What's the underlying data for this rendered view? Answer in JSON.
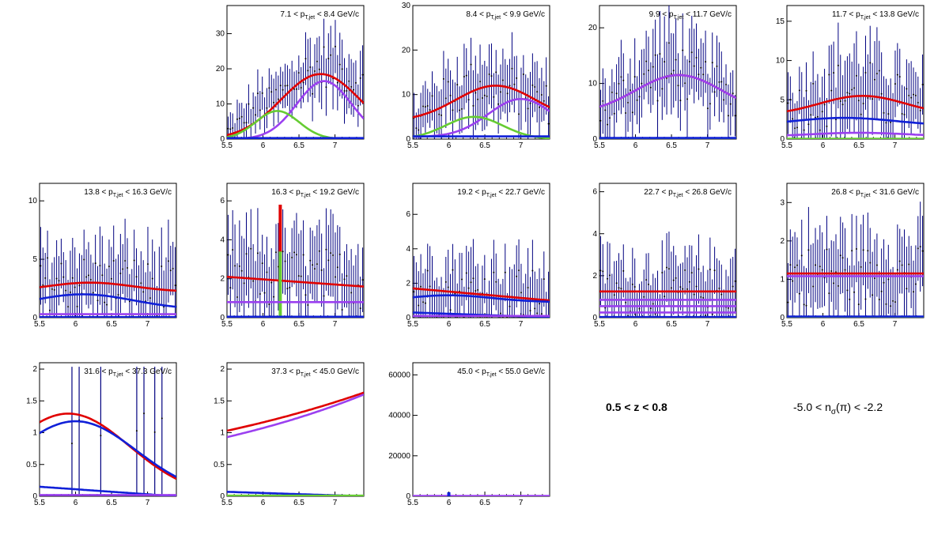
{
  "chart_data": [
    {
      "type": "scatter",
      "panel": "7.1-8.4",
      "label": {
        "lo": "7.1",
        "hi": "8.4",
        "unit": "GeV/c",
        "var": "p",
        "sub": "T,jet"
      },
      "xlim": [
        5.5,
        7.4
      ],
      "ylim": [
        0,
        38
      ],
      "yticks": [
        0,
        10,
        20,
        30
      ],
      "xticks": [
        5.5,
        6,
        6.5,
        7
      ],
      "data_level": [
        2,
        4,
        7,
        9,
        10,
        11,
        13,
        15,
        17,
        19,
        20,
        21,
        20,
        19,
        17,
        15
      ],
      "errors": [
        4,
        5,
        5,
        6,
        6,
        6,
        7,
        7,
        7,
        8,
        8,
        8,
        8,
        8,
        7,
        7
      ],
      "curves": [
        {
          "color": "#e00000",
          "type": "gauss",
          "amp": 18.5,
          "mu": 6.8,
          "sigma": 0.55,
          "base": 0
        },
        {
          "color": "#9b40f0",
          "type": "gauss",
          "amp": 16.5,
          "mu": 6.85,
          "sigma": 0.38,
          "base": 0
        },
        {
          "color": "#66cc33",
          "type": "gauss",
          "amp": 8,
          "mu": 6.2,
          "sigma": 0.3,
          "base": 0
        },
        {
          "color": "#1020d8",
          "type": "flat",
          "value": 0.3
        }
      ]
    },
    {
      "type": "scatter",
      "panel": "8.4-9.9",
      "label": {
        "lo": "8.4",
        "hi": "9.9",
        "unit": "GeV/c",
        "var": "p",
        "sub": "T,jet"
      },
      "xlim": [
        5.5,
        7.4
      ],
      "ylim": [
        0,
        30
      ],
      "yticks": [
        0,
        10,
        20,
        30
      ],
      "xticks": [
        5.5,
        6,
        6.5,
        7
      ],
      "data_level": [
        4,
        6,
        8,
        9,
        10,
        11,
        12,
        12,
        12,
        12,
        11,
        11,
        10,
        10,
        9,
        8
      ],
      "errors": [
        5,
        5,
        6,
        6,
        6,
        7,
        7,
        7,
        7,
        7,
        7,
        7,
        6,
        6,
        6,
        6
      ],
      "curves": [
        {
          "color": "#e00000",
          "type": "gauss",
          "amp": 8,
          "mu": 6.65,
          "sigma": 0.55,
          "base": 4
        },
        {
          "color": "#9b40f0",
          "type": "gauss",
          "amp": 8.5,
          "mu": 7.0,
          "sigma": 0.45,
          "base": 0.5
        },
        {
          "color": "#66cc33",
          "type": "gauss",
          "amp": 5,
          "mu": 6.35,
          "sigma": 0.4,
          "base": 0
        },
        {
          "color": "#1020d8",
          "type": "flat",
          "value": 0.6
        }
      ]
    },
    {
      "type": "scatter",
      "panel": "9.9-11.7",
      "label": {
        "lo": "9.9",
        "hi": "11.7",
        "unit": "GeV/c",
        "var": "p",
        "sub": "T,jet"
      },
      "xlim": [
        5.5,
        7.4
      ],
      "ylim": [
        0,
        24
      ],
      "yticks": [
        0,
        10,
        20
      ],
      "xticks": [
        5.5,
        6,
        6.5,
        7
      ],
      "data_level": [
        5,
        6,
        8,
        9,
        10,
        11,
        12,
        12,
        12,
        12,
        11,
        10,
        10,
        9,
        8,
        7
      ],
      "errors": [
        5,
        5,
        6,
        6,
        6,
        6,
        7,
        7,
        7,
        7,
        6,
        6,
        6,
        6,
        5,
        5
      ],
      "curves": [
        {
          "color": "#e00000",
          "type": "gauss",
          "amp": 7,
          "mu": 6.6,
          "sigma": 0.6,
          "base": 4.5
        },
        {
          "color": "#9b40f0",
          "type": "gauss",
          "amp": 7,
          "mu": 6.6,
          "sigma": 0.6,
          "base": 4.5
        },
        {
          "color": "#66cc33",
          "type": "flat",
          "value": 0.1
        },
        {
          "color": "#1020d8",
          "type": "flat",
          "value": 0.2
        }
      ]
    },
    {
      "type": "scatter",
      "panel": "11.7-13.8",
      "label": {
        "lo": "11.7",
        "hi": "13.8",
        "unit": "GeV/c",
        "var": "p",
        "sub": "T,jet"
      },
      "xlim": [
        5.5,
        7.4
      ],
      "ylim": [
        0,
        17
      ],
      "yticks": [
        0,
        5,
        10,
        15
      ],
      "xticks": [
        5.5,
        6,
        6.5,
        7
      ],
      "data_level": [
        4,
        4,
        5,
        5,
        5,
        6,
        6,
        6,
        6,
        6,
        5,
        5,
        5,
        5,
        4,
        4
      ],
      "errors": [
        4,
        4,
        4,
        5,
        5,
        5,
        5,
        5,
        5,
        5,
        5,
        5,
        5,
        4,
        4,
        4
      ],
      "curves": [
        {
          "color": "#e00000",
          "type": "gauss",
          "amp": 2.5,
          "mu": 6.55,
          "sigma": 0.6,
          "base": 3
        },
        {
          "color": "#1020d8",
          "type": "gauss",
          "amp": 1.0,
          "mu": 6.3,
          "sigma": 0.7,
          "base": 1.7
        },
        {
          "color": "#9b40f0",
          "type": "gauss",
          "amp": 0.5,
          "mu": 6.5,
          "sigma": 0.7,
          "base": 0.3
        },
        {
          "color": "#66cc33",
          "type": "flat",
          "value": 0.05
        }
      ]
    },
    {
      "type": "scatter",
      "panel": "13.8-16.3",
      "label": {
        "lo": "13.8",
        "hi": "16.3",
        "unit": "GeV/c",
        "var": "p",
        "sub": "T,jet"
      },
      "xlim": [
        5.5,
        7.4
      ],
      "ylim": [
        0,
        11.5
      ],
      "yticks": [
        0,
        5,
        10
      ],
      "xticks": [
        5.5,
        6,
        6.5,
        7
      ],
      "data_level": [
        3,
        3,
        3,
        3,
        3,
        3,
        3,
        3,
        3,
        3,
        3,
        2.5,
        2.5,
        2.5,
        2.5,
        2
      ],
      "errors": [
        3,
        3,
        3,
        3,
        3,
        3,
        3,
        3,
        3,
        3,
        3,
        3,
        3,
        3,
        3,
        3
      ],
      "curves": [
        {
          "color": "#e00000",
          "type": "gauss",
          "amp": 0.8,
          "mu": 6.2,
          "sigma": 0.6,
          "base": 2.2
        },
        {
          "color": "#1020d8",
          "type": "gauss",
          "amp": 1.3,
          "mu": 6.1,
          "sigma": 0.7,
          "base": 0.7
        },
        {
          "color": "#9b40f0",
          "type": "flat",
          "value": 0.3
        },
        {
          "color": "#1020d8",
          "type": "flat",
          "value": 0.05
        }
      ]
    },
    {
      "type": "scatter",
      "panel": "16.3-19.2",
      "label": {
        "lo": "16.3",
        "hi": "19.2",
        "unit": "GeV/c",
        "var": "p",
        "sub": "T,jet"
      },
      "xlim": [
        5.5,
        7.4
      ],
      "ylim": [
        0,
        6.9
      ],
      "yticks": [
        0,
        2,
        4,
        6
      ],
      "xticks": [
        5.5,
        6,
        6.5,
        7
      ],
      "data_level": [
        2,
        2,
        2,
        2,
        2,
        2,
        2,
        2,
        2,
        2,
        2,
        2,
        2,
        2,
        2,
        2
      ],
      "errors": [
        2,
        2,
        2,
        2,
        2,
        2,
        2,
        2,
        2,
        2,
        2,
        2,
        2,
        2,
        2,
        2
      ],
      "curves": [
        {
          "color": "#e00000",
          "type": "line",
          "y0": 2.1,
          "y1": 1.6,
          "spike": {
            "x": 6.24,
            "h": 3.9
          }
        },
        {
          "color": "#66cc33",
          "type": "spike",
          "x": 6.24,
          "h": 3.4
        },
        {
          "color": "#9b40f0",
          "type": "flat",
          "value": 0.8
        },
        {
          "color": "#1020d8",
          "type": "flat",
          "value": 0.05
        }
      ]
    },
    {
      "type": "scatter",
      "panel": "19.2-22.7",
      "label": {
        "lo": "19.2",
        "hi": "22.7",
        "unit": "GeV/c",
        "var": "p",
        "sub": "T,jet"
      },
      "xlim": [
        5.5,
        7.4
      ],
      "ylim": [
        0,
        7.8
      ],
      "yticks": [
        0,
        2,
        4,
        6
      ],
      "xticks": [
        5.5,
        6,
        6.5,
        7
      ],
      "data_level": [
        1.5,
        1.5,
        1.5,
        1.5,
        1.5,
        1.5,
        1.5,
        1.5,
        1.5,
        1.5,
        1.3,
        1.3,
        1.3,
        1.2,
        1.2,
        1.1
      ],
      "errors": [
        2,
        2,
        2,
        2,
        2,
        2,
        2,
        2,
        2,
        2,
        2,
        2,
        2,
        2,
        2,
        2
      ],
      "curves": [
        {
          "color": "#e00000",
          "type": "line",
          "y0": 1.7,
          "y1": 1.0
        },
        {
          "color": "#1020d8",
          "type": "gauss",
          "amp": 0.4,
          "mu": 6.0,
          "sigma": 0.6,
          "base": 0.9
        },
        {
          "color": "#1020d8",
          "type": "line",
          "y0": 0.3,
          "y1": 0.02
        },
        {
          "color": "#9b40f0",
          "type": "flat",
          "value": 0.1
        }
      ]
    },
    {
      "type": "scatter",
      "panel": "22.7-26.8",
      "label": {
        "lo": "22.7",
        "hi": "26.8",
        "unit": "GeV/c",
        "var": "p",
        "sub": "T,jet"
      },
      "xlim": [
        5.5,
        7.4
      ],
      "ylim": [
        0,
        6.4
      ],
      "yticks": [
        0,
        2,
        4,
        6
      ],
      "xticks": [
        5.5,
        6,
        6.5,
        7
      ],
      "data_level": [
        1.2,
        1.2,
        1.2,
        1.2,
        1.2,
        1.2,
        1.2,
        1.2,
        1.2,
        1.2,
        1.2,
        1.2,
        1.2,
        1.2,
        1.2,
        1.2
      ],
      "errors": [
        1.5,
        1.5,
        1.5,
        1.5,
        1.5,
        1.5,
        1.5,
        1.5,
        1.5,
        1.5,
        1.5,
        1.5,
        1.5,
        1.5,
        1.5,
        1.5
      ],
      "curves": [
        {
          "color": "#e00000",
          "type": "flat",
          "value": 1.25
        },
        {
          "color": "#9b40f0",
          "type": "flat",
          "value": 0.85
        },
        {
          "color": "#9b40f0",
          "type": "flat",
          "value": 0.55
        },
        {
          "color": "#9b40f0",
          "type": "flat",
          "value": 0.25
        },
        {
          "color": "#1020d8",
          "type": "flat",
          "value": 0.03
        }
      ]
    },
    {
      "type": "scatter",
      "panel": "26.8-31.6",
      "label": {
        "lo": "26.8",
        "hi": "31.6",
        "unit": "GeV/c",
        "var": "p",
        "sub": "T,jet"
      },
      "xlim": [
        5.5,
        7.4
      ],
      "ylim": [
        0,
        3.5
      ],
      "yticks": [
        0,
        1,
        2,
        3
      ],
      "xticks": [
        5.5,
        6,
        6.5,
        7
      ],
      "data_level": [
        1.1,
        1.1,
        1.1,
        1.1,
        1.1,
        1.1,
        1.1,
        1.1,
        1.1,
        1.1,
        1.1,
        1.1,
        1.1,
        1.1,
        1.1,
        1.1
      ],
      "errors": [
        1,
        1,
        1,
        1,
        1,
        1,
        1,
        1,
        1,
        1,
        1,
        1,
        1,
        1,
        1,
        1
      ],
      "curves": [
        {
          "color": "#e00000",
          "type": "flat",
          "value": 1.15
        },
        {
          "color": "#9b40f0",
          "type": "flat",
          "value": 1.08
        },
        {
          "color": "#66cc33",
          "type": "flat",
          "value": 0.02
        },
        {
          "color": "#1020d8",
          "type": "flat",
          "value": 0.03
        }
      ]
    },
    {
      "type": "scatter",
      "panel": "31.6-37.3",
      "label": {
        "lo": "31.6",
        "hi": "37.3",
        "unit": "GeV/c",
        "var": "p",
        "sub": "T,jet"
      },
      "xlim": [
        5.5,
        7.4
      ],
      "ylim": [
        0,
        2.1
      ],
      "yticks": [
        0,
        0.5,
        1,
        1.5,
        2
      ],
      "xticks": [
        5.5,
        6,
        6.5,
        7
      ],
      "sparse_points": [
        5.95,
        6.05,
        6.35,
        6.85,
        6.95,
        7.1,
        7.2
      ],
      "curves": [
        {
          "color": "#e00000",
          "type": "gauss",
          "amp": 1.3,
          "mu": 5.9,
          "sigma": 0.85,
          "base": 0
        },
        {
          "color": "#1020d8",
          "type": "gauss",
          "amp": 1.18,
          "mu": 6.0,
          "sigma": 0.85,
          "base": 0
        },
        {
          "color": "#1020d8",
          "type": "line",
          "y0": 0.15,
          "y1": 0.0
        },
        {
          "color": "#9b40f0",
          "type": "flat",
          "value": 0.02
        }
      ]
    },
    {
      "type": "scatter",
      "panel": "37.3-45.0",
      "label": {
        "lo": "37.3",
        "hi": "45.0",
        "unit": "GeV/c",
        "var": "p",
        "sub": "T,jet"
      },
      "xlim": [
        5.5,
        7.4
      ],
      "ylim": [
        0,
        2.1
      ],
      "yticks": [
        0,
        0.5,
        1,
        1.5,
        2
      ],
      "xticks": [
        5.5,
        6,
        6.5,
        7
      ],
      "curves": [
        {
          "color": "#e00000",
          "type": "exp",
          "y0": 1.03,
          "y1": 1.63
        },
        {
          "color": "#9b40f0",
          "type": "exp",
          "y0": 0.93,
          "y1": 1.6
        },
        {
          "color": "#1020d8",
          "type": "line",
          "y0": 0.07,
          "y1": 0.0
        },
        {
          "color": "#66cc33",
          "type": "flat",
          "value": 0.01
        }
      ]
    },
    {
      "type": "scatter",
      "panel": "45.0-55.0",
      "label": {
        "lo": "45.0",
        "hi": "55.0",
        "unit": "GeV/c",
        "var": "p",
        "sub": "T,jet"
      },
      "xlim": [
        5.5,
        7.4
      ],
      "ylim": [
        0,
        66000
      ],
      "yticks": [
        0,
        20000,
        40000,
        60000
      ],
      "xticks": [
        5.5,
        6,
        6.5,
        7
      ],
      "curves": [
        {
          "color": "#9b40f0",
          "type": "flat",
          "value": 150
        },
        {
          "color": "#1020d8",
          "type": "spike",
          "x": 6.0,
          "h": 2000
        }
      ]
    }
  ],
  "cuts": {
    "z": "0.5 < z < 0.8",
    "n_prefix": "-5.0 < n",
    "n_sub": "σ",
    "n_suffix": "(π) < -2.2"
  },
  "colors": {
    "data": "#000080",
    "signal": "#e00000",
    "purple": "#9b40f0",
    "green": "#66cc33",
    "blue": "#1020d8"
  }
}
